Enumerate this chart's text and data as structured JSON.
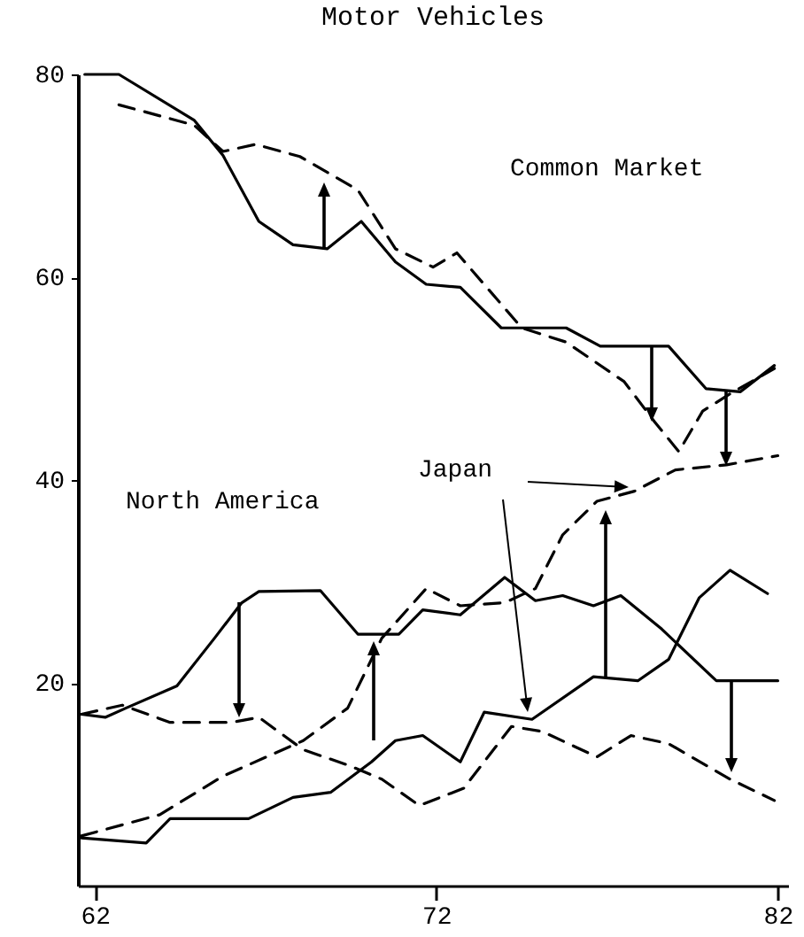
{
  "chart_data": {
    "type": "line",
    "title": "Motor Vehicles",
    "annotations": [
      "Common Market",
      "North America",
      "Japan"
    ],
    "xlim": [
      61.5,
      82.3
    ],
    "xticks": [
      62,
      72,
      82
    ],
    "ylim": [
      0,
      80
    ],
    "yticks": [
      20,
      40,
      60,
      80
    ],
    "grid": false,
    "marker": "none",
    "series": [
      {
        "color": "#000000",
        "line_style": "solid",
        "x": [
          61.7,
          62.7,
          64.9,
          65.75,
          66.8,
          67.8,
          68.8,
          69.8,
          70.8,
          71.7,
          72.7,
          73.9,
          75.8,
          76.8,
          78.8,
          79.9,
          80.9,
          81.9
        ],
        "values": [
          80,
          80,
          75.5,
          72,
          65.5,
          63.2,
          62.8,
          65.5,
          61.5,
          59.3,
          59,
          55,
          55,
          53.2,
          53.2,
          49,
          48.7,
          51.3
        ]
      },
      {
        "color": "#000000",
        "line_style": "dashed",
        "x": [
          62.7,
          64.9,
          65.75,
          66.7,
          68,
          69.7,
          70.8,
          71.9,
          72.6,
          74.5,
          75.8,
          77.5,
          78.4,
          79.1,
          79.8,
          80.6,
          81.9
        ],
        "values": [
          77,
          75,
          72.4,
          73.1,
          71.9,
          68.6,
          62.8,
          61,
          62.4,
          55,
          53.6,
          49.7,
          45.7,
          42.8,
          46.8,
          48.5,
          51
        ]
      },
      {
        "color": "#000000",
        "line_style": "solid",
        "x": [
          61.6,
          62.3,
          62.9,
          64.4,
          65.5,
          66.3,
          66.8,
          68.6,
          69.7,
          70.9,
          71.6,
          72.7,
          74,
          74.9,
          75.7,
          76.6,
          77.4,
          78.6,
          80.2,
          82
        ],
        "values": [
          16.9,
          16.6,
          17.5,
          19.7,
          24.4,
          27.9,
          29,
          29.1,
          24.8,
          24.8,
          27.2,
          26.7,
          30.4,
          28.1,
          28.6,
          27.6,
          28.6,
          25.3,
          20.2,
          20.2
        ]
      },
      {
        "color": "#000000",
        "line_style": "dashed",
        "x": [
          61.6,
          62.8,
          64.2,
          66,
          66.8,
          68.1,
          69.4,
          70.4,
          71.5,
          72.8,
          74.2,
          75.1,
          76.7,
          77.7,
          78.8,
          80.6,
          81.9
        ],
        "values": [
          16.9,
          17.8,
          16.1,
          16.1,
          16.6,
          13.4,
          11.9,
          10.5,
          7.9,
          9.6,
          15.7,
          15.2,
          12.7,
          14.8,
          14,
          10.5,
          8.4
        ]
      },
      {
        "color": "#000000",
        "line_style": "solid",
        "x": [
          61.6,
          63.5,
          64.2,
          66.5,
          67.8,
          68.9,
          70.1,
          70.8,
          71.6,
          72.7,
          73.4,
          74.8,
          76.6,
          77.9,
          78.8,
          79.7,
          80.6,
          81.7
        ],
        "values": [
          4.7,
          4.2,
          6.6,
          6.6,
          8.7,
          9.2,
          12.2,
          14.3,
          14.8,
          12.2,
          17.1,
          16.4,
          20.6,
          20.2,
          22.3,
          28.4,
          31.1,
          28.8
        ]
      },
      {
        "color": "#000000",
        "line_style": "dashed",
        "x": [
          61.6,
          63.9,
          65.75,
          68.1,
          69.4,
          70.4,
          71.7,
          72.7,
          74,
          74.9,
          75.7,
          76.7,
          77.8,
          79,
          80.5,
          82
        ],
        "values": [
          4.9,
          7,
          10.8,
          14.3,
          17.5,
          24.4,
          29.3,
          27.6,
          27.9,
          29.3,
          34.6,
          37.9,
          38.9,
          41,
          41.5,
          42.4
        ]
      }
    ]
  }
}
